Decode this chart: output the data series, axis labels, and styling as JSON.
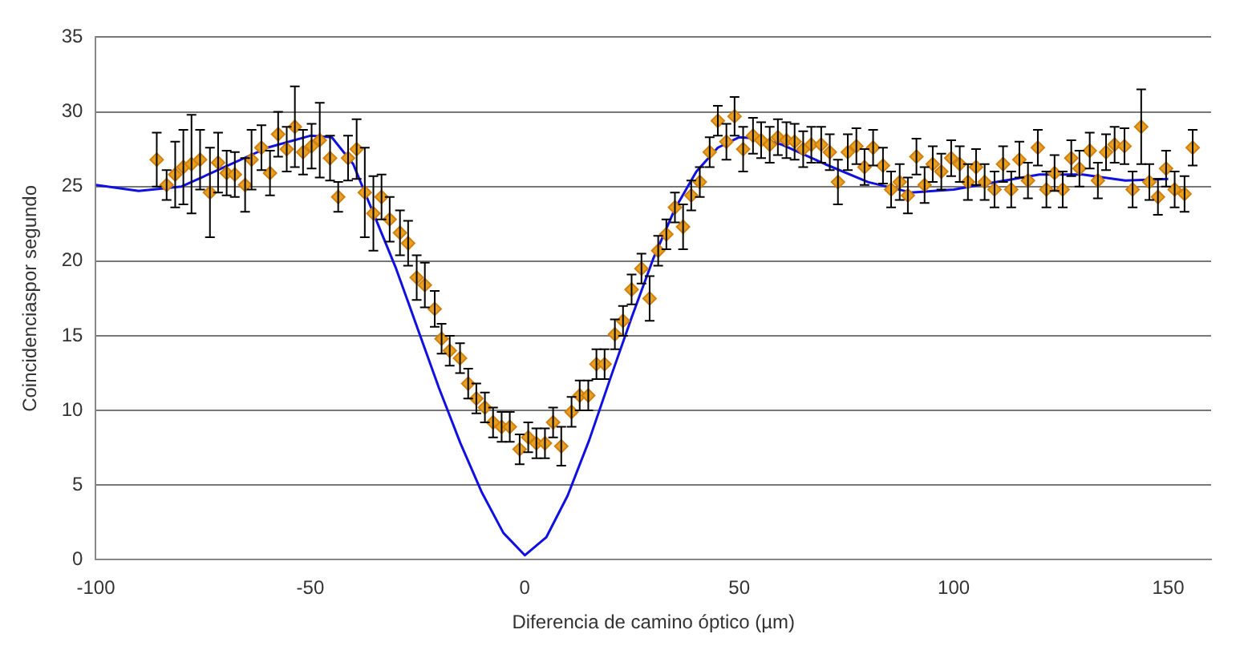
{
  "chart_data": {
    "type": "scatter",
    "xlabel": "Diferencia de camino óptico (µm)",
    "ylabel": "Coincidenciaspor segundo",
    "xlim": [
      -100,
      160
    ],
    "xticks": [
      -100,
      -50,
      0,
      50,
      100,
      150
    ],
    "ylim": [
      0,
      35
    ],
    "yticks": [
      0,
      5,
      10,
      15,
      20,
      25,
      30,
      35
    ],
    "grid": "y",
    "legend": false,
    "series": [
      {
        "type": "line",
        "color": "#1010e0",
        "marker": "none",
        "line_style": "solid",
        "x": [
          -100,
          -90,
          -80,
          -70,
          -60,
          -50,
          -45,
          -40,
          -35,
          -30,
          -25,
          -20,
          -15,
          -10,
          -5,
          0,
          5,
          10,
          15,
          20,
          25,
          30,
          35,
          40,
          45,
          50,
          55,
          60,
          70,
          80,
          90,
          100,
          110,
          120,
          130,
          140,
          150
        ],
        "values": [
          25.1,
          24.7,
          25,
          26.3,
          27.6,
          28.4,
          28.3,
          26.5,
          23,
          19.5,
          15.5,
          11.5,
          7.8,
          4.5,
          1.8,
          0.3,
          1.5,
          4.3,
          8,
          12.2,
          16.3,
          20.2,
          23.5,
          26,
          27.6,
          28.3,
          28.2,
          27.8,
          26.5,
          25.3,
          24.6,
          24.8,
          25.3,
          25.8,
          25.8,
          25.4,
          25.5
        ]
      },
      {
        "color": "#e8a020",
        "marker": "diamond",
        "x": [
          -85.8,
          -83.5,
          -81.5,
          -79.6,
          -77.7,
          -75.7,
          -73.4,
          -71.5,
          -69.5,
          -67.6,
          -65.2,
          -63.7,
          -61.4,
          -59.4,
          -57.5,
          -55.5,
          -53.6,
          -51.7,
          -49.7,
          -47.8,
          -45.4,
          -43.5,
          -41.2,
          -39.2,
          -37.3,
          -35.3,
          -33.4,
          -31.5,
          -29.1,
          -27.2,
          -25.2,
          -23.3,
          -21,
          -19.4,
          -17.5,
          -15.1,
          -13.2,
          -11.3,
          -9.3,
          -7.4,
          -5.4,
          -3.5,
          -1.2,
          0.8,
          2.7,
          4.7,
          6.6,
          8.5,
          10.9,
          12.8,
          14.8,
          16.7,
          18.6,
          21,
          22.9,
          24.9,
          27.2,
          29.1,
          31.1,
          33,
          35,
          36.9,
          38.8,
          40.8,
          43.1,
          45,
          47,
          48.9,
          50.9,
          53.2,
          55.1,
          57.1,
          59,
          61,
          62.9,
          64.9,
          66.8,
          69.1,
          71.1,
          73,
          75.3,
          77.3,
          79.2,
          81.2,
          83.5,
          85.4,
          87.4,
          89.3,
          91.3,
          93.2,
          95.1,
          97.1,
          99.4,
          101.4,
          103.3,
          105.2,
          107.2,
          109.5,
          111.5,
          113.4,
          115.3,
          117.3,
          119.6,
          121.6,
          123.5,
          125.4,
          127.4,
          129.3,
          131.7,
          133.6,
          135.5,
          137.5,
          139.8,
          141.7,
          143.7,
          145.6,
          147.6,
          149.5,
          151.5,
          153.8,
          155.7
        ],
        "values": [
          26.8,
          25.1,
          25.8,
          26.3,
          26.5,
          26.8,
          24.6,
          26.6,
          25.9,
          25.8,
          25.1,
          26.8,
          27.6,
          25.9,
          28.5,
          27.5,
          29,
          27.3,
          27.7,
          28.1,
          26.9,
          24.3,
          26.9,
          27.5,
          24.6,
          23.2,
          24.3,
          22.8,
          21.9,
          21.2,
          18.9,
          18.4,
          16.8,
          14.8,
          14,
          13.5,
          11.8,
          10.8,
          10.2,
          9.2,
          8.9,
          8.9,
          7.4,
          8.2,
          7.8,
          7.8,
          9.2,
          7.6,
          9.9,
          11,
          11,
          13.1,
          13.1,
          15.1,
          16,
          18.1,
          19.5,
          17.5,
          20.7,
          21.8,
          23.6,
          22.3,
          24.4,
          25.3,
          27.3,
          29.4,
          28,
          29.7,
          27.5,
          28.4,
          28.1,
          27.8,
          28.3,
          28.1,
          28,
          27.5,
          27.8,
          27.8,
          27.3,
          25.3,
          27.3,
          27.7,
          26.3,
          27.6,
          26.4,
          24.8,
          25.3,
          24.4,
          27,
          25.1,
          26.5,
          26,
          26.9,
          26.5,
          25.3,
          26.3,
          25.3,
          24.8,
          26.5,
          24.8,
          26.8,
          25.4,
          27.6,
          24.8,
          25.9,
          24.8,
          26.9,
          26.2,
          27.4,
          25.4,
          27.3,
          27.8,
          27.7,
          24.8,
          29,
          25.3,
          24.3,
          26.2,
          24.8,
          24.5,
          27.6
        ],
        "errors": [
          1.8,
          1,
          2.2,
          2.5,
          3.3,
          2,
          3,
          2,
          1.5,
          1.5,
          1.8,
          2,
          1.5,
          1.5,
          1.5,
          1.5,
          2.7,
          1.5,
          1.5,
          2.5,
          1.5,
          1,
          1.5,
          2,
          3,
          2.5,
          1.5,
          1.5,
          1.5,
          1.5,
          1.5,
          1.5,
          1.2,
          1,
          1,
          1,
          1,
          1,
          1,
          1,
          1,
          1,
          1,
          1,
          1,
          1,
          1,
          1.3,
          1,
          1,
          1,
          1,
          1,
          1,
          1,
          1,
          1,
          1.5,
          1,
          1,
          1,
          1.5,
          1,
          1,
          1,
          1,
          1.2,
          1.3,
          1.5,
          1.2,
          1.2,
          1.2,
          1.2,
          1.2,
          1.2,
          1.2,
          1.2,
          1.2,
          1.2,
          1.5,
          1.2,
          1.2,
          1.2,
          1.2,
          1.2,
          1.2,
          1.2,
          1.2,
          1.2,
          1.2,
          1.2,
          1.2,
          1.2,
          1.2,
          1.2,
          1.2,
          1.2,
          1.2,
          1.2,
          1.2,
          1.2,
          1.2,
          1.2,
          1.2,
          1.2,
          1.2,
          1.2,
          1.2,
          1.2,
          1.2,
          1.2,
          1.2,
          1.2,
          1.2,
          2.5,
          1.2,
          1.2,
          1.2,
          1.2,
          1.2,
          1.2
        ]
      }
    ]
  }
}
